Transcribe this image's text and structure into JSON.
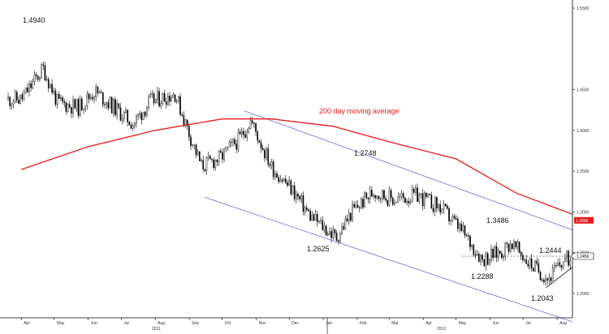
{
  "chart_data": {
    "type": "candlestick",
    "y_axis": {
      "side": "right",
      "ticks": [
        "1.5500",
        "1.4500",
        "1.4000",
        "1.3500",
        "1.3000",
        "1.2500",
        "1.2000"
      ]
    },
    "ylim": [
      1.17,
      1.56
    ],
    "x_axis": {
      "months": [
        "Apr",
        "May",
        "Jun",
        "Jul",
        "Aug",
        "Sep",
        "Oct",
        "Nov",
        "Dec",
        "Jan",
        "Feb",
        "Mar",
        "Apr",
        "May",
        "Jun",
        "Jul",
        "Aug"
      ],
      "years": [
        "2011",
        "2012"
      ]
    },
    "annotations": [
      "1.4940",
      "1.2748",
      "1.3486",
      "1.2625",
      "1.2288",
      "1.2444",
      "1.2043"
    ],
    "series": [
      {
        "type": "candlestick",
        "x": [
          "2011-04-01",
          "2011-04-21",
          "2011-05-04",
          "2011-05-23",
          "2011-06-07",
          "2011-06-21",
          "2011-07-12",
          "2011-07-27",
          "2011-08-19",
          "2011-09-02",
          "2011-09-12",
          "2011-09-29",
          "2011-10-17",
          "2011-10-27",
          "2011-11-15",
          "2011-12-05",
          "2011-12-20",
          "2012-01-13",
          "2012-01-27",
          "2012-02-16",
          "2012-03-05",
          "2012-03-27",
          "2012-04-17",
          "2012-05-04",
          "2012-05-25",
          "2012-06-12",
          "2012-06-20",
          "2012-07-06",
          "2012-07-24",
          "2012-08-08"
        ],
        "close": [
          1.438,
          1.476,
          1.434,
          1.428,
          1.448,
          1.432,
          1.408,
          1.435,
          1.445,
          1.392,
          1.356,
          1.366,
          1.39,
          1.412,
          1.355,
          1.325,
          1.295,
          1.268,
          1.3,
          1.325,
          1.315,
          1.32,
          1.305,
          1.28,
          1.242,
          1.252,
          1.262,
          1.238,
          1.218,
          1.242
        ]
      },
      {
        "name": "200 day moving average",
        "type": "line",
        "x": [
          "2011-04-01",
          "2011-06-01",
          "2011-08-01",
          "2011-10-01",
          "2011-11-15",
          "2012-01-10",
          "2012-03-01",
          "2012-05-01",
          "2012-06-25",
          "2012-08-15"
        ],
        "y": [
          1.352,
          1.38,
          1.4,
          1.414,
          1.414,
          1.405,
          1.386,
          1.365,
          1.323,
          1.297
        ]
      }
    ],
    "channel_lines": [
      "2011-10-21 1.424 → 2012-08-15 1.278",
      "2011-09-15 1.318 → 2012-08-15 1.165"
    ],
    "callouts": [
      {
        "value": "1.2896",
        "color": "#e41a1c"
      },
      {
        "value": "1.2456",
        "color": "#000000"
      }
    ],
    "grid": false
  }
}
